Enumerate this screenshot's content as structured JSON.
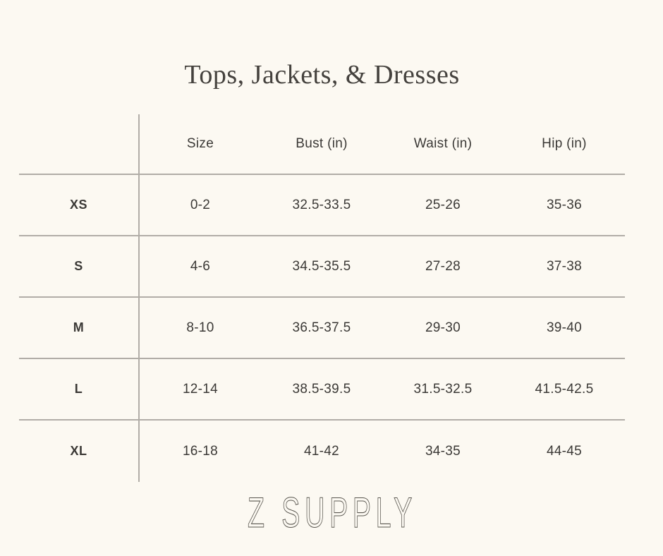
{
  "page": {
    "title": "Tops, Jackets, & Dresses",
    "brand": "Z SUPPLY",
    "background_color": "#fcf9f2",
    "line_color": "#b1ada7",
    "text_color": "#3b3936"
  },
  "table": {
    "columns": [
      "Size",
      "Bust (in)",
      "Waist (in)",
      "Hip (in)"
    ],
    "rows": [
      {
        "label": "XS",
        "size": "0-2",
        "bust": "32.5-33.5",
        "waist": "25-26",
        "hip": "35-36"
      },
      {
        "label": "S",
        "size": "4-6",
        "bust": "34.5-35.5",
        "waist": "27-28",
        "hip": "37-38"
      },
      {
        "label": "M",
        "size": "8-10",
        "bust": "36.5-37.5",
        "waist": "29-30",
        "hip": "39-40"
      },
      {
        "label": "L",
        "size": "12-14",
        "bust": "38.5-39.5",
        "waist": "31.5-32.5",
        "hip": "41.5-42.5"
      },
      {
        "label": "XL",
        "size": "16-18",
        "bust": "41-42",
        "waist": "34-35",
        "hip": "44-45"
      }
    ]
  }
}
